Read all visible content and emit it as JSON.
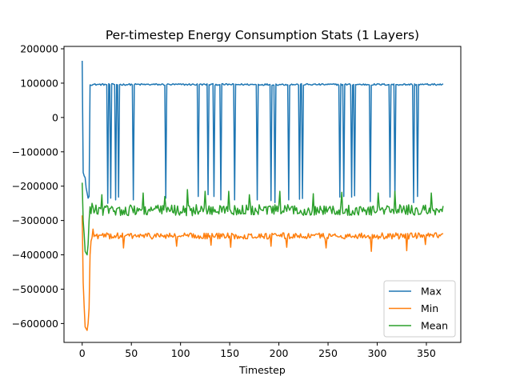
{
  "chart_data": {
    "type": "line",
    "title": "Per-timestep Energy Consumption Stats (1 Layers)",
    "xlabel": "Timestep",
    "ylabel": "",
    "xlim": [
      -18.5,
      385
    ],
    "ylim": [
      -655000,
      207000
    ],
    "xticks": [
      0,
      50,
      100,
      150,
      200,
      250,
      300,
      350
    ],
    "yticks": [
      200000,
      100000,
      0,
      -100000,
      -200000,
      -300000,
      -400000,
      -500000,
      -600000
    ],
    "ytick_labels": [
      "200000",
      "100000",
      "0",
      "−100000",
      "−200000",
      "−300000",
      "−400000",
      "−500000",
      "−600000"
    ],
    "xtick_labels": [
      "0",
      "50",
      "100",
      "150",
      "200",
      "250",
      "300",
      "350"
    ],
    "legend": {
      "placement": "lower-right"
    },
    "grid": false,
    "series": [
      {
        "name": "Max",
        "color": "#1f77b4",
        "baseline": 96000,
        "noise": 2500,
        "x_end": 367,
        "start": [
          [
            0,
            165000
          ],
          [
            1,
            -160000
          ],
          [
            2,
            -170000
          ],
          [
            3,
            -175000
          ],
          [
            4,
            -205000
          ],
          [
            5,
            -220000
          ],
          [
            6,
            -235000
          ],
          [
            7,
            -230000
          ],
          [
            8,
            95000
          ]
        ],
        "dips": [
          [
            26,
            -250000
          ],
          [
            29,
            -235000
          ],
          [
            34,
            -240000
          ],
          [
            37,
            -232000
          ],
          [
            52,
            -240000
          ],
          [
            85,
            -235000
          ],
          [
            118,
            -230000
          ],
          [
            128,
            -225000
          ],
          [
            134,
            -230000
          ],
          [
            141,
            -240000
          ],
          [
            155,
            -240000
          ],
          [
            178,
            -240000
          ],
          [
            192,
            -242000
          ],
          [
            196,
            -248000
          ],
          [
            210,
            -240000
          ],
          [
            221,
            -238000
          ],
          [
            224,
            -236000
          ],
          [
            262,
            -232000
          ],
          [
            266,
            -230000
          ],
          [
            274,
            -232000
          ],
          [
            277,
            -228000
          ],
          [
            293,
            -245000
          ],
          [
            313,
            -232000
          ],
          [
            318,
            -238000
          ],
          [
            337,
            -248000
          ],
          [
            341,
            -230000
          ]
        ]
      },
      {
        "name": "Min",
        "color": "#ff7f0e",
        "baseline": -345000,
        "noise": 9000,
        "x_end": 367,
        "start": [
          [
            0,
            -285000
          ],
          [
            1,
            -480000
          ],
          [
            2,
            -550000
          ],
          [
            3,
            -610000
          ],
          [
            4,
            -615000
          ],
          [
            5,
            -620000
          ],
          [
            6,
            -600000
          ],
          [
            7,
            -555000
          ],
          [
            8,
            -400000
          ],
          [
            9,
            -360000
          ],
          [
            10,
            -350000
          ],
          [
            11,
            -325000
          ]
        ],
        "dips": [
          [
            42,
            -380000
          ],
          [
            96,
            -375000
          ],
          [
            131,
            -372000
          ],
          [
            151,
            -378000
          ],
          [
            192,
            -375000
          ],
          [
            208,
            -378000
          ],
          [
            248,
            -380000
          ],
          [
            294,
            -390000
          ],
          [
            330,
            -388000
          ],
          [
            349,
            -370000
          ]
        ]
      },
      {
        "name": "Mean",
        "color": "#2ca02c",
        "baseline": -270000,
        "noise": 16000,
        "x_end": 367,
        "start": [
          [
            0,
            -190000
          ],
          [
            1,
            -300000
          ],
          [
            2,
            -340000
          ],
          [
            3,
            -390000
          ],
          [
            4,
            -395000
          ],
          [
            5,
            -400000
          ],
          [
            6,
            -370000
          ],
          [
            7,
            -300000
          ],
          [
            8,
            -260000
          ],
          [
            9,
            -280000
          ],
          [
            10,
            -250000
          ]
        ],
        "dips": [
          [
            20,
            -225000
          ],
          [
            62,
            -220000
          ],
          [
            84,
            -230000
          ],
          [
            107,
            -210000
          ],
          [
            125,
            -215000
          ],
          [
            149,
            -215000
          ],
          [
            170,
            -225000
          ],
          [
            201,
            -215000
          ],
          [
            235,
            -222000
          ],
          [
            264,
            -218000
          ],
          [
            301,
            -220000
          ],
          [
            318,
            -215000
          ],
          [
            355,
            -220000
          ]
        ]
      }
    ]
  }
}
